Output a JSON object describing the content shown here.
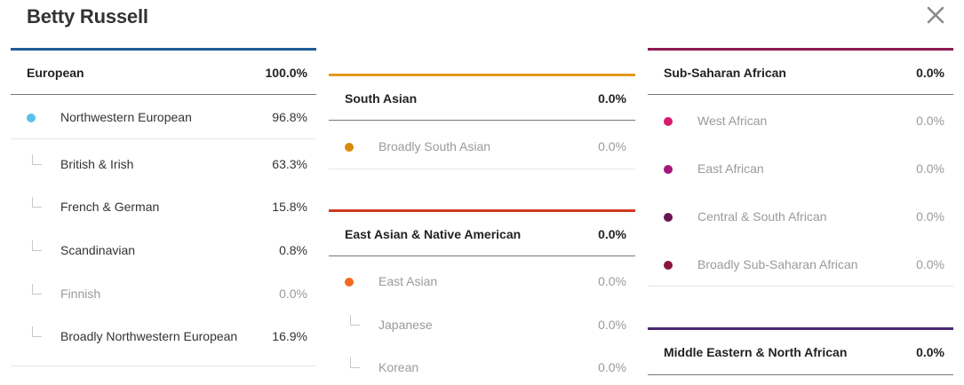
{
  "title": "Betty Russell",
  "close_icon": "close-icon",
  "colors": {
    "european": "#1f5c99",
    "south_asian": "#e39b1a",
    "east_asian": "#cf3b1e",
    "sub_saharan": "#8c1a4e",
    "middle_eastern": "#4a2a72",
    "dot_northwestern": "#5bc0e8",
    "dot_south_asian": "#d98a0d",
    "dot_east_asian": "#f26a21",
    "dot_west_african": "#d81b6a",
    "dot_east_african": "#a3167a",
    "dot_central_african": "#6b1452",
    "dot_broadly_sub_saharan": "#8a1538"
  },
  "european": {
    "name": "European",
    "pct": "100.0%",
    "rows": [
      {
        "label": "Northwestern European",
        "val": "96.8%"
      },
      {
        "label": "British & Irish",
        "val": "63.3%"
      },
      {
        "label": "French & German",
        "val": "15.8%"
      },
      {
        "label": "Scandinavian",
        "val": "0.8%"
      },
      {
        "label": "Finnish",
        "val": "0.0%"
      },
      {
        "label": "Broadly Northwestern European",
        "val": "16.9%"
      }
    ]
  },
  "south_asian": {
    "name": "South Asian",
    "pct": "0.0%",
    "rows": [
      {
        "label": "Broadly South Asian",
        "val": "0.0%"
      }
    ]
  },
  "east_asian": {
    "name": "East Asian & Native American",
    "pct": "0.0%",
    "rows": [
      {
        "label": "East Asian",
        "val": "0.0%"
      },
      {
        "label": "Japanese",
        "val": "0.0%"
      },
      {
        "label": "Korean",
        "val": "0.0%"
      }
    ]
  },
  "sub_saharan": {
    "name": "Sub-Saharan African",
    "pct": "0.0%",
    "rows": [
      {
        "label": "West African",
        "val": "0.0%"
      },
      {
        "label": "East African",
        "val": "0.0%"
      },
      {
        "label": "Central & South African",
        "val": "0.0%"
      },
      {
        "label": "Broadly Sub-Saharan African",
        "val": "0.0%"
      }
    ]
  },
  "middle_eastern": {
    "name": "Middle Eastern & North African",
    "pct": "0.0%"
  }
}
